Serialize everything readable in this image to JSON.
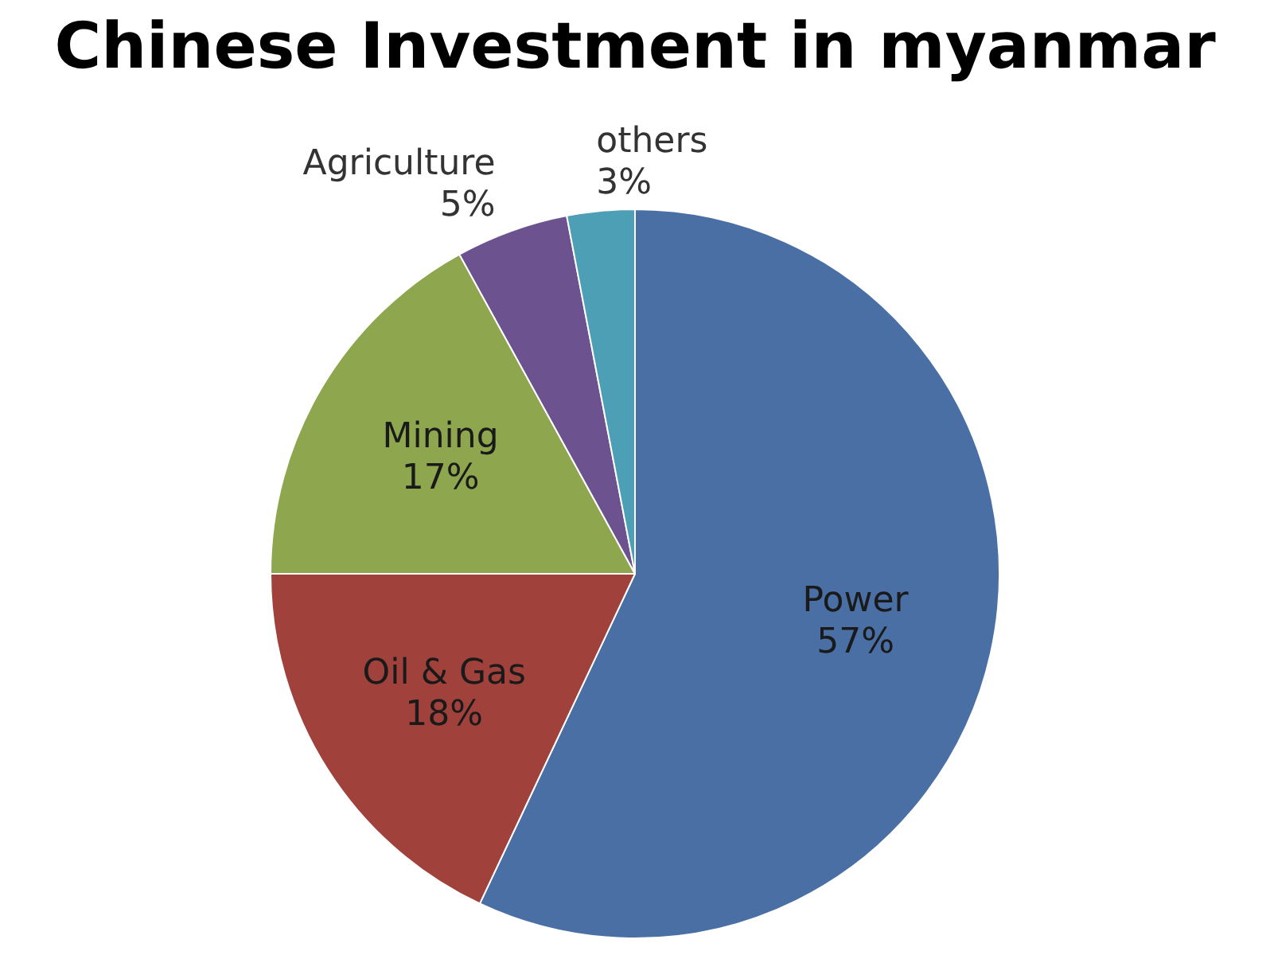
{
  "chart_data": {
    "type": "pie",
    "title": "Chinese Investment in myanmar",
    "categories": [
      "Power",
      "Oil & Gas",
      "Mining",
      "Agriculture",
      "others"
    ],
    "values": [
      57,
      18,
      17,
      5,
      3
    ],
    "colors": [
      "#4a6fa5",
      "#a0413c",
      "#8ea64e",
      "#6c5390",
      "#4c9fb5"
    ],
    "value_labels": [
      "57%",
      "18%",
      "17%",
      "5%",
      "3%"
    ],
    "legend": false
  }
}
